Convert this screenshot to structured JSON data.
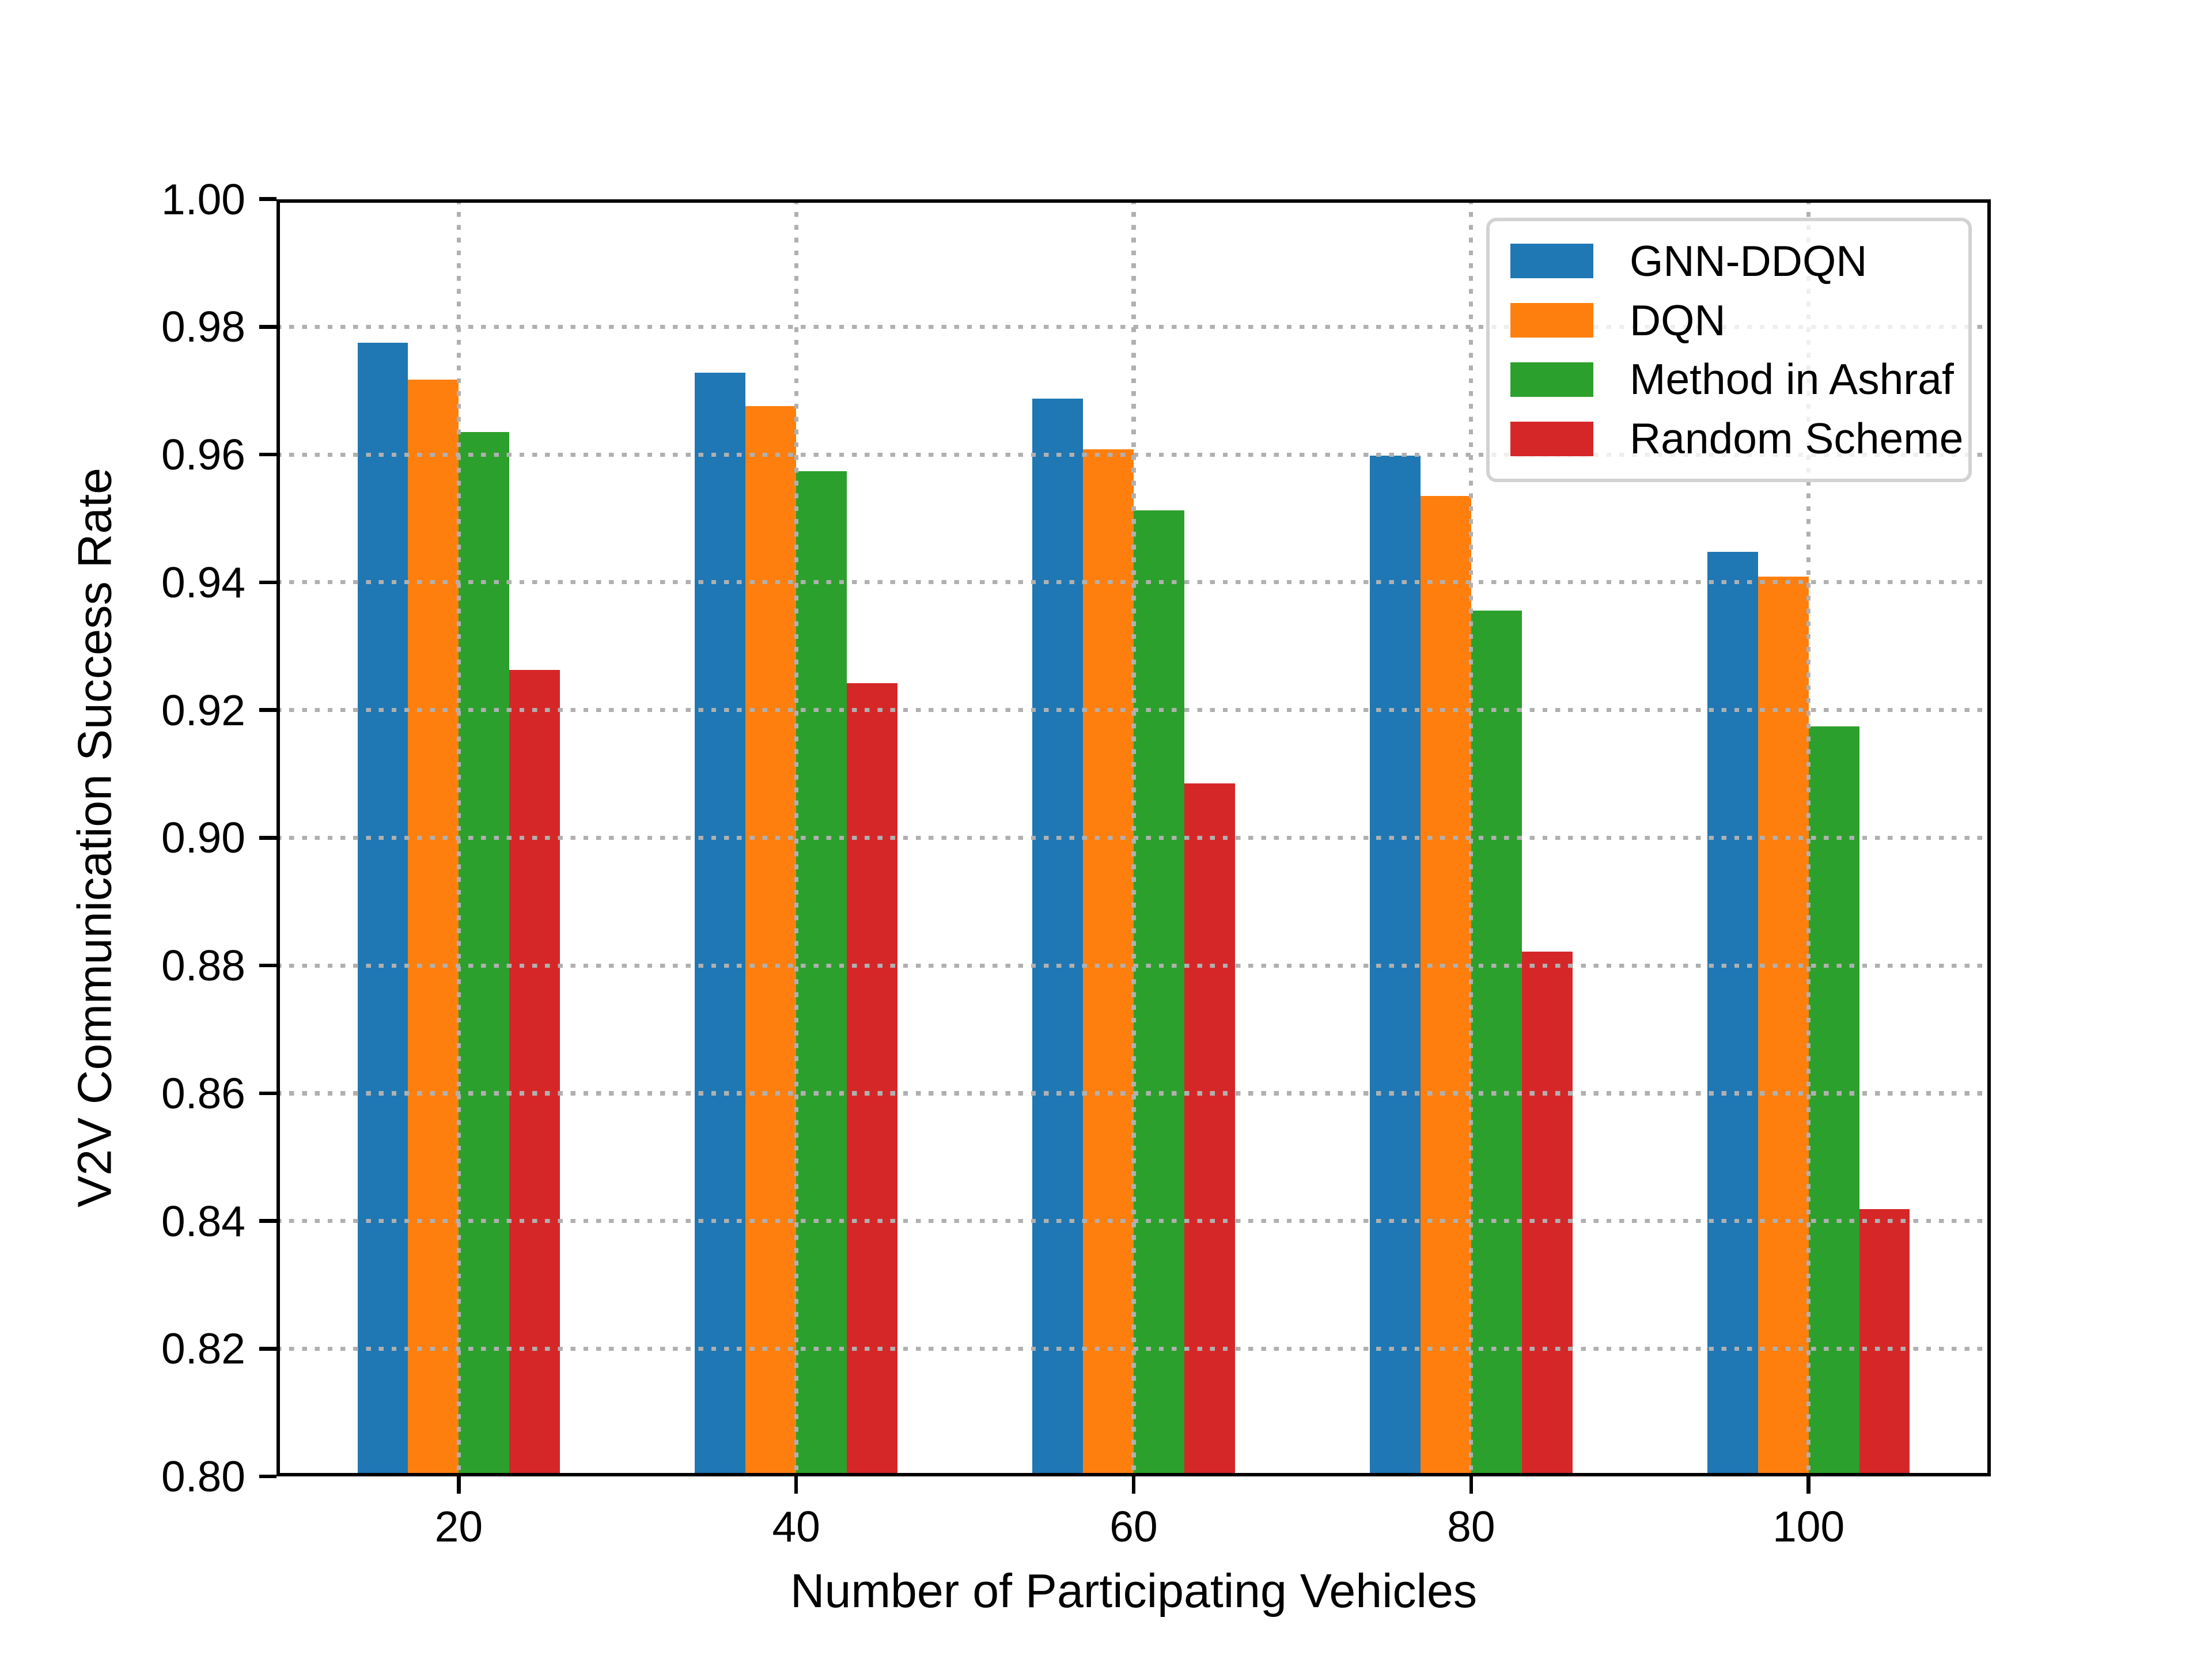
{
  "chart_data": {
    "type": "bar",
    "title": "",
    "xlabel": "Number of Participating Vehicles",
    "ylabel": "V2V Communication Success Rate",
    "categories": [
      "20",
      "40",
      "60",
      "80",
      "100"
    ],
    "series": [
      {
        "name": "GNN-DDQN",
        "color": "#1f77b4",
        "values": [
          0.9775,
          0.9728,
          0.9688,
          0.9598,
          0.9448
        ]
      },
      {
        "name": "DQN",
        "color": "#ff7f0e",
        "values": [
          0.9717,
          0.9676,
          0.9608,
          0.9535,
          0.9409
        ]
      },
      {
        "name": "Method in Ashraf",
        "color": "#2ca02c",
        "values": [
          0.9635,
          0.9574,
          0.9513,
          0.9356,
          0.9174
        ]
      },
      {
        "name": "Random Scheme",
        "color": "#d62728",
        "values": [
          0.9263,
          0.9242,
          0.9085,
          0.8822,
          0.8419
        ]
      }
    ],
    "ylim": [
      0.8,
      1.0
    ],
    "ytick_step": 0.02,
    "ytick_labels": [
      "0.80",
      "0.82",
      "0.84",
      "0.86",
      "0.88",
      "0.90",
      "0.92",
      "0.94",
      "0.96",
      "0.98",
      "1.00"
    ],
    "xtick_labels": [
      "20",
      "40",
      "60",
      "80",
      "100"
    ],
    "bar_width_units": 0.15,
    "grid": {
      "visible": true,
      "style": "dotted",
      "color": "#b0b0b0",
      "drawn_above_bars": true
    },
    "legend": {
      "position": "upper right",
      "entries": [
        "GNN-DDQN",
        "DQN",
        "Method in Ashraf",
        "Random Scheme"
      ],
      "border_color": "#d2d2d2",
      "background": "rgba(255,255,255,0.8)"
    },
    "axis_color": "#000000",
    "background_color": "#ffffff"
  }
}
